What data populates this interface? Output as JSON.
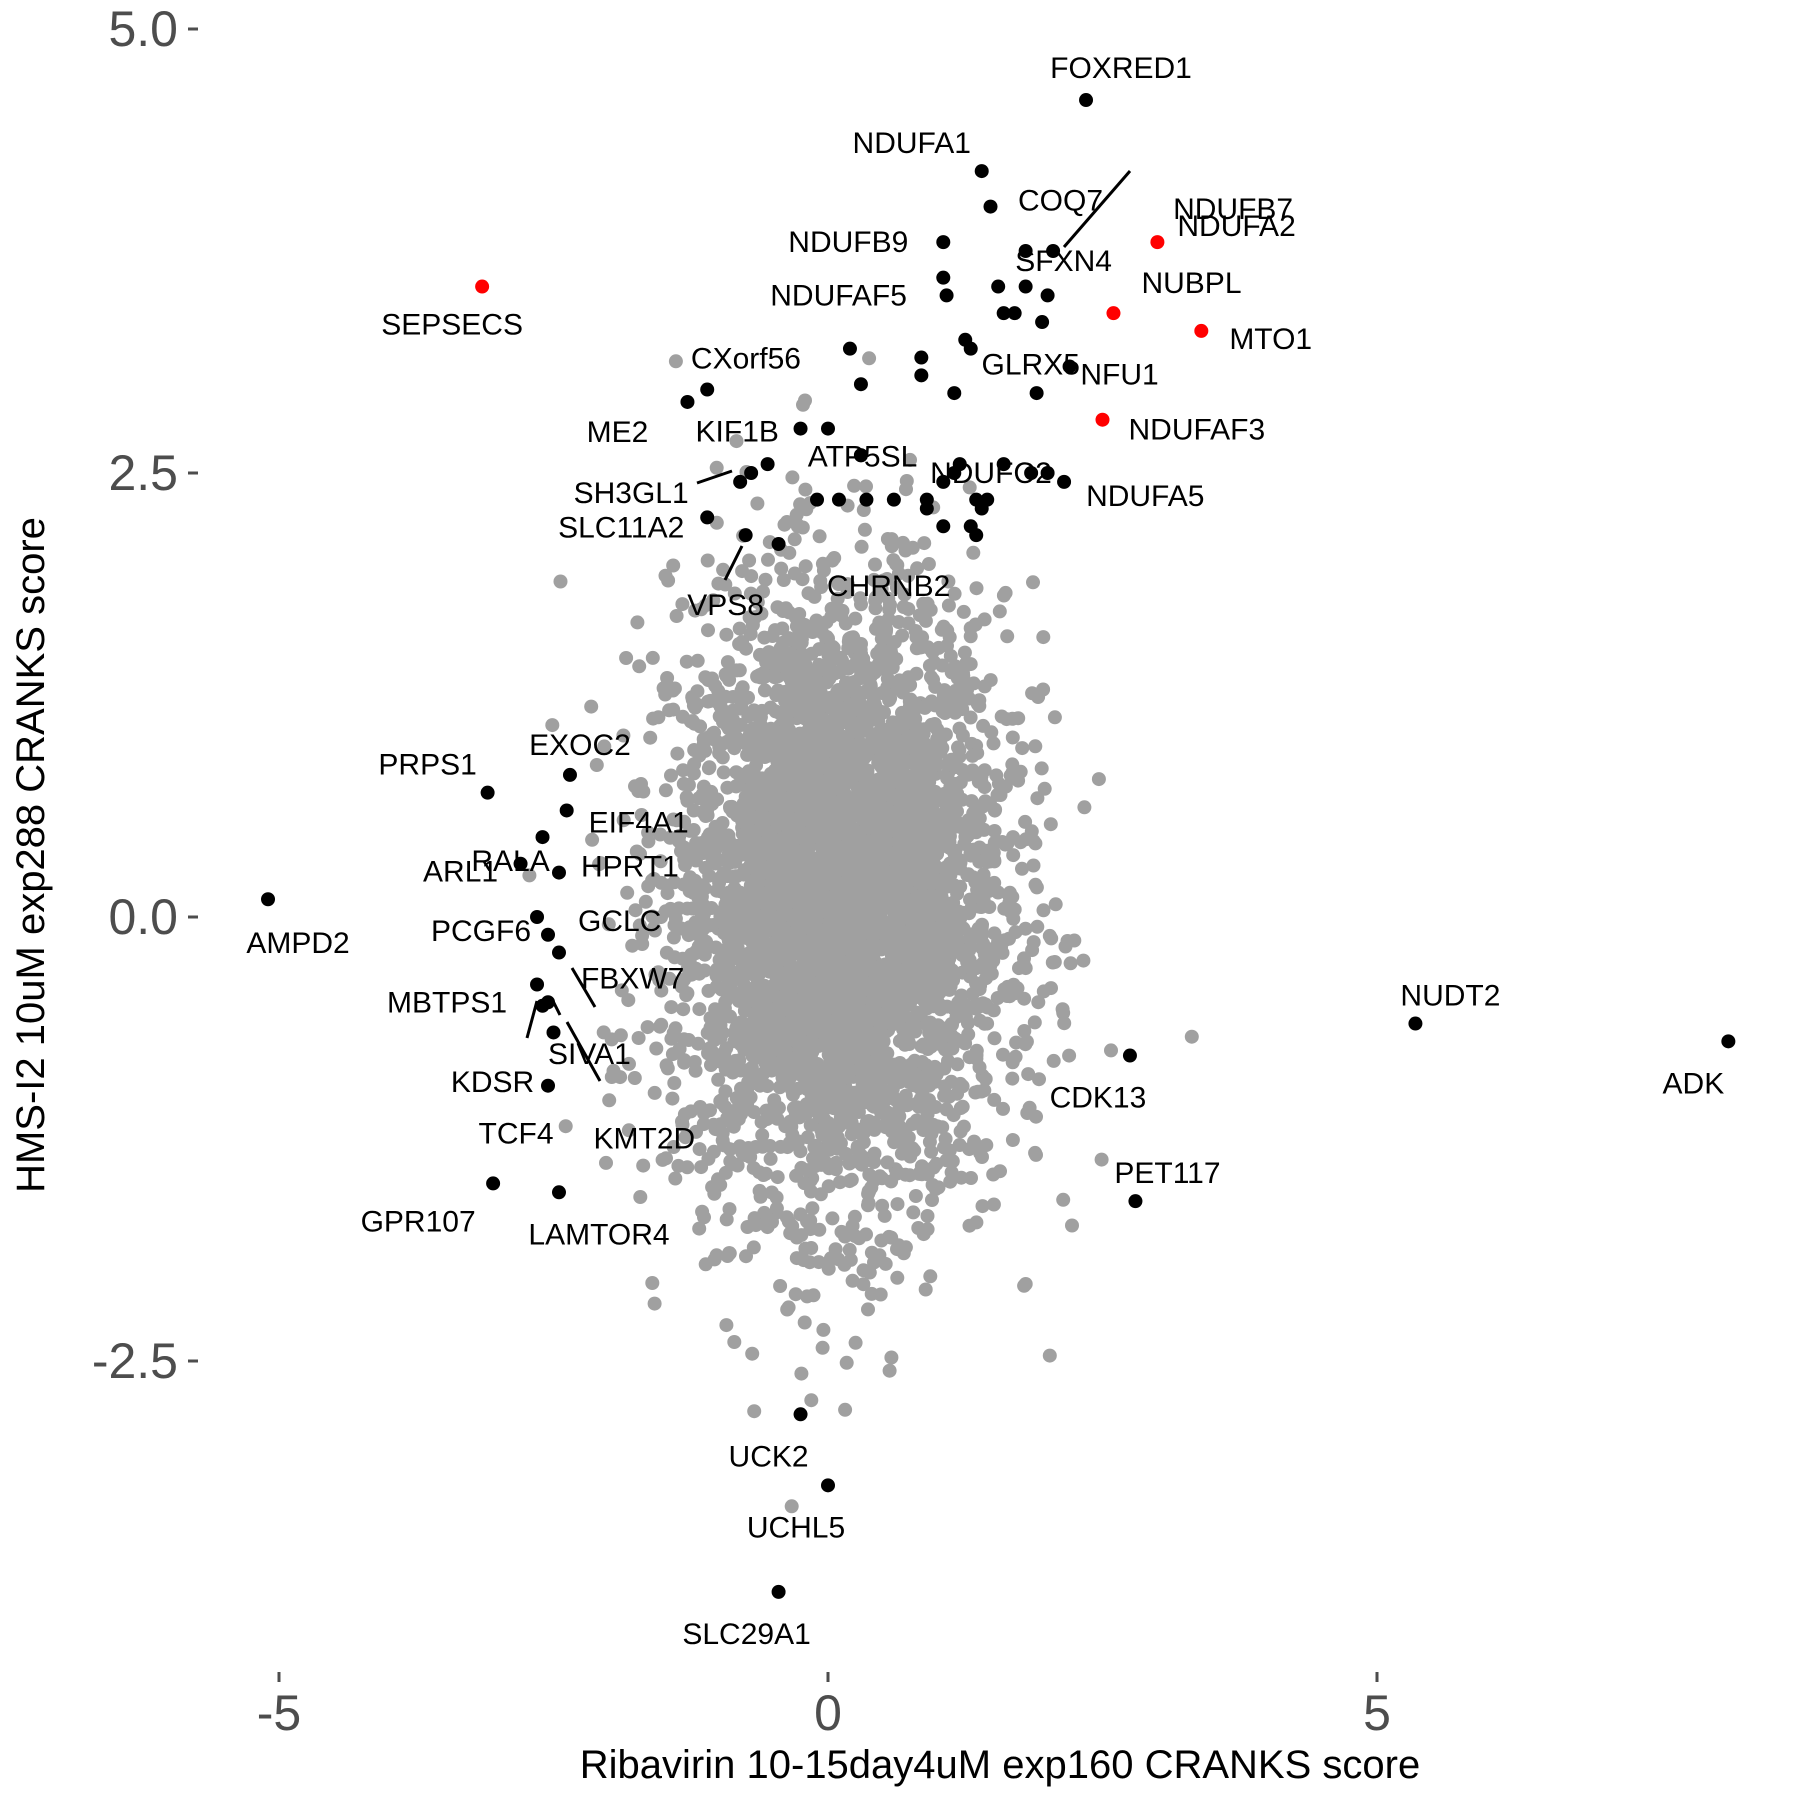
{
  "chart_data": {
    "type": "scatter",
    "xlabel": "Ribavirin 10-15day4uM exp160 CRANKS score",
    "ylabel": "HMS-I2 10uM exp288 CRANKS score",
    "xlim": [
      -5.8,
      8.4
    ],
    "ylim": [
      -4.2,
      5.1
    ],
    "x_ticks": [
      {
        "value": -5,
        "label": "-5"
      },
      {
        "value": 0,
        "label": "0"
      },
      {
        "value": 5,
        "label": "5"
      }
    ],
    "y_ticks": [
      {
        "value": 5.0,
        "label": "5.0"
      },
      {
        "value": 2.5,
        "label": "2.5"
      },
      {
        "value": 0.0,
        "label": "0.0"
      },
      {
        "value": -2.5,
        "label": "-2.5"
      }
    ],
    "grid": false,
    "colors": {
      "background": "#4d4d4d",
      "highlighted": "#000000",
      "complex_i": "#ff0000",
      "tick": "#4d4d4d"
    },
    "background_points": {
      "description": "thousands of unlabeled grey gene points",
      "center": [
        0.1,
        0.1
      ],
      "sd": [
        0.75,
        0.85
      ],
      "count": 4500
    },
    "labeled_points": [
      {
        "label": "FOXRED1",
        "x": 2.35,
        "y": 4.6,
        "color": "#000000"
      },
      {
        "label": "NDUFA1",
        "x": 1.4,
        "y": 4.2,
        "color": "#000000"
      },
      {
        "label": "COQ7",
        "x": 1.48,
        "y": 4.0,
        "color": "#000000"
      },
      {
        "label": "NDUFB7",
        "x": 2.05,
        "y": 3.75,
        "color": "#000000"
      },
      {
        "label": "NDUFB9",
        "x": 1.05,
        "y": 3.8,
        "color": "#000000"
      },
      {
        "label": "SFXN4",
        "x": 1.8,
        "y": 3.75,
        "color": "#000000"
      },
      {
        "label": "NDUFA2",
        "x": 3.0,
        "y": 3.8,
        "color": "#ff0000"
      },
      {
        "label": "NDUFAF5",
        "x": 1.08,
        "y": 3.5,
        "color": "#000000"
      },
      {
        "label": "NUBPL",
        "x": 2.6,
        "y": 3.4,
        "color": "#ff0000"
      },
      {
        "label": "SEPSECS",
        "x": -3.15,
        "y": 3.55,
        "color": "#ff0000"
      },
      {
        "label": "MTO1",
        "x": 3.4,
        "y": 3.3,
        "color": "#ff0000"
      },
      {
        "label": "CXorf56",
        "x": 0.2,
        "y": 3.2,
        "color": "#000000"
      },
      {
        "label": "GLRX5",
        "x": 1.3,
        "y": 3.2,
        "color": "#000000"
      },
      {
        "label": "NFU1",
        "x": 2.2,
        "y": 3.1,
        "color": "#000000"
      },
      {
        "label": "ME2",
        "x": -1.28,
        "y": 2.9,
        "color": "#000000"
      },
      {
        "label": "KIF1B",
        "x": -1.1,
        "y": 2.97,
        "color": "#000000"
      },
      {
        "label": "ATP5SL",
        "x": -0.25,
        "y": 2.75,
        "color": "#000000"
      },
      {
        "label": "NDUFC2",
        "x": 0.3,
        "y": 2.6,
        "color": "#000000"
      },
      {
        "label": "NDUFAF3",
        "x": 2.5,
        "y": 2.8,
        "color": "#ff0000"
      },
      {
        "label": "NDUFA5",
        "x": 2.15,
        "y": 2.45,
        "color": "#000000"
      },
      {
        "label": "SH3GL1",
        "x": -0.7,
        "y": 2.5,
        "color": "#000000"
      },
      {
        "label": "SLC11A2",
        "x": -1.1,
        "y": 2.25,
        "color": "#000000"
      },
      {
        "label": "VPS8",
        "x": -0.75,
        "y": 2.15,
        "color": "#000000"
      },
      {
        "label": "CHRNB2",
        "x": -0.45,
        "y": 2.1,
        "color": "#000000"
      },
      {
        "label": "PRPS1",
        "x": -3.1,
        "y": 0.7,
        "color": "#000000"
      },
      {
        "label": "EXOC2",
        "x": -2.35,
        "y": 0.8,
        "color": "#000000"
      },
      {
        "label": "RALA",
        "x": -2.6,
        "y": 0.45,
        "color": "#000000"
      },
      {
        "label": "EIF4A1",
        "x": -2.38,
        "y": 0.6,
        "color": "#000000"
      },
      {
        "label": "ARL1",
        "x": -2.8,
        "y": 0.3,
        "color": "#000000"
      },
      {
        "label": "HPRT1",
        "x": -2.45,
        "y": 0.25,
        "color": "#000000"
      },
      {
        "label": "AMPD2",
        "x": -5.1,
        "y": 0.1,
        "color": "#000000"
      },
      {
        "label": "PCGF6",
        "x": -2.65,
        "y": 0.0,
        "color": "#000000"
      },
      {
        "label": "GCLC",
        "x": -2.55,
        "y": -0.1,
        "color": "#000000"
      },
      {
        "label": "FBXW7",
        "x": -2.45,
        "y": -0.2,
        "color": "#000000"
      },
      {
        "label": "MBTPS1",
        "x": -2.65,
        "y": -0.38,
        "color": "#000000"
      },
      {
        "label": "SIVA1",
        "x": -2.55,
        "y": -0.48,
        "color": "#000000"
      },
      {
        "label": "KDSR",
        "x": -2.6,
        "y": -0.5,
        "color": "#000000"
      },
      {
        "label": "KMT2D",
        "x": -2.5,
        "y": -0.65,
        "color": "#000000"
      },
      {
        "label": "TCF4",
        "x": -2.55,
        "y": -0.95,
        "color": "#000000"
      },
      {
        "label": "GPR107",
        "x": -3.05,
        "y": -1.5,
        "color": "#000000"
      },
      {
        "label": "LAMTOR4",
        "x": -2.45,
        "y": -1.55,
        "color": "#000000"
      },
      {
        "label": "NUDT2",
        "x": 5.35,
        "y": -0.6,
        "color": "#000000"
      },
      {
        "label": "ADK",
        "x": 8.2,
        "y": -0.7,
        "color": "#000000"
      },
      {
        "label": "CDK13",
        "x": 2.75,
        "y": -0.78,
        "color": "#000000"
      },
      {
        "label": "PET117",
        "x": 2.8,
        "y": -1.6,
        "color": "#000000"
      },
      {
        "label": "UCK2",
        "x": -0.25,
        "y": -2.8,
        "color": "#000000"
      },
      {
        "label": "UCHL5",
        "x": 0.0,
        "y": -3.2,
        "color": "#000000"
      },
      {
        "label": "SLC29A1",
        "x": -0.45,
        "y": -3.8,
        "color": "#000000"
      }
    ],
    "unlabeled_highlight_points": [
      {
        "x": 1.05,
        "y": 3.6
      },
      {
        "x": 1.55,
        "y": 3.55
      },
      {
        "x": 1.8,
        "y": 3.55
      },
      {
        "x": 2.0,
        "y": 3.5
      },
      {
        "x": 1.6,
        "y": 3.4
      },
      {
        "x": 1.7,
        "y": 3.4
      },
      {
        "x": 1.95,
        "y": 3.35
      },
      {
        "x": 1.25,
        "y": 3.25
      },
      {
        "x": 0.85,
        "y": 3.15
      },
      {
        "x": 0.85,
        "y": 3.05
      },
      {
        "x": 0.3,
        "y": 3.0
      },
      {
        "x": 1.15,
        "y": 2.95
      },
      {
        "x": 1.9,
        "y": 2.95
      },
      {
        "x": 0.0,
        "y": 2.75
      },
      {
        "x": 0.3,
        "y": 2.6
      },
      {
        "x": 1.15,
        "y": 2.5
      },
      {
        "x": 1.2,
        "y": 2.55
      },
      {
        "x": 1.6,
        "y": 2.55
      },
      {
        "x": 1.85,
        "y": 2.5
      },
      {
        "x": 2.0,
        "y": 2.5
      },
      {
        "x": -0.55,
        "y": 2.55
      },
      {
        "x": -0.8,
        "y": 2.45
      },
      {
        "x": -0.1,
        "y": 2.35
      },
      {
        "x": 0.1,
        "y": 2.35
      },
      {
        "x": 0.35,
        "y": 2.35
      },
      {
        "x": 0.6,
        "y": 2.35
      },
      {
        "x": 0.9,
        "y": 2.35
      },
      {
        "x": 1.05,
        "y": 2.45
      },
      {
        "x": 1.35,
        "y": 2.35
      },
      {
        "x": 1.45,
        "y": 2.35
      },
      {
        "x": 1.4,
        "y": 2.3
      },
      {
        "x": 1.05,
        "y": 2.2
      },
      {
        "x": 1.3,
        "y": 2.2
      },
      {
        "x": 1.35,
        "y": 2.15
      },
      {
        "x": 0.9,
        "y": 2.3
      }
    ]
  }
}
